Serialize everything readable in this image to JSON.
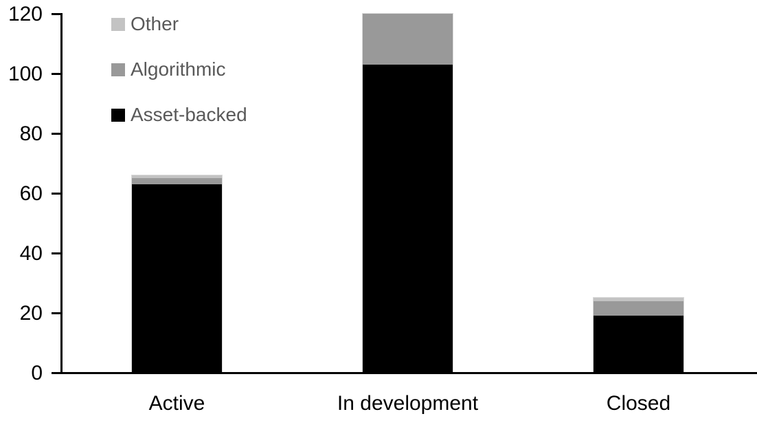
{
  "chart_data": {
    "type": "bar",
    "stacked": true,
    "title": "",
    "xlabel": "",
    "ylabel": "",
    "categories": [
      "Active",
      "In development",
      "Closed"
    ],
    "series": [
      {
        "name": "Asset-backed",
        "color": "#000000",
        "values": [
          63,
          103,
          19
        ]
      },
      {
        "name": "Algorithmic",
        "color": "#999999",
        "values": [
          2,
          17,
          5
        ]
      },
      {
        "name": "Other",
        "color": "#c3c3c3",
        "values": [
          1,
          0,
          1
        ]
      }
    ],
    "totals": [
      66,
      120,
      25
    ],
    "ylim": [
      0,
      120
    ],
    "yticks": [
      0,
      20,
      40,
      60,
      80,
      100,
      120
    ],
    "grid": false,
    "legend_position": "top-left",
    "legend_order": [
      "Other",
      "Algorithmic",
      "Asset-backed"
    ],
    "colors": {
      "axis": "#000000",
      "tick_label": "#000000",
      "category_label": "#000000",
      "legend_text": "#595959",
      "bar_border": "#d9d9d9",
      "background": "#ffffff"
    }
  }
}
